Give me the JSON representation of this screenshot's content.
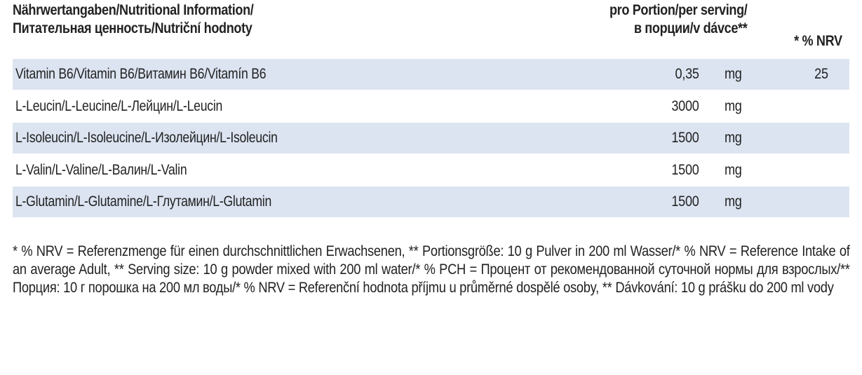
{
  "header": {
    "title_line1": "Nährwertangaben/Nutritional Information/",
    "title_line2": "Питательная ценность/Nutriční hodnoty",
    "serving_line1": "pro Portion/per serving/",
    "serving_line2": "в порции/v dávce**",
    "nrv": "* % NRV"
  },
  "rows": [
    {
      "name": "Vitamin B6/Vitamin B6/Витамин B6/Vitamín B6",
      "amount": "0,35",
      "unit": "mg",
      "nrv": "25"
    },
    {
      "name": "L-Leucin/L-Leucine/L-Лейцин/L-Leucin",
      "amount": "3000",
      "unit": "mg",
      "nrv": ""
    },
    {
      "name": "L-Isoleucin/L-Isoleucine/L-Изолейцин/L-Isoleucin",
      "amount": "1500",
      "unit": "mg",
      "nrv": ""
    },
    {
      "name": "L-Valin/L-Valine/L-Валин/L-Valin",
      "amount": "1500",
      "unit": "mg",
      "nrv": ""
    },
    {
      "name": "L-Glutamin/L-Glutamine/L-Глутамин/L-Glutamin",
      "amount": "1500",
      "unit": "mg",
      "nrv": ""
    }
  ],
  "footnote": "* % NRV = Referenzmenge für einen durchschnittlichen Erwachsenen, ** Portionsgröße: 10 g Pulver in 200 ml Wasser/* % NRV = Reference Intake of an average Adult, ** Serving size: 10 g powder mixed with 200 ml water/* % PCH = Процент от рекомендованной суточной нормы для взрослых/** Порция: 10 г порошка на 200 мл воды/* % NRV = Referenční hodnota příjmu u průměrné dospělé osoby, ** Dávkování: 10 g prášku do 200 ml vody",
  "colors": {
    "row_shade": "#dce4f1",
    "text": "#222222"
  }
}
